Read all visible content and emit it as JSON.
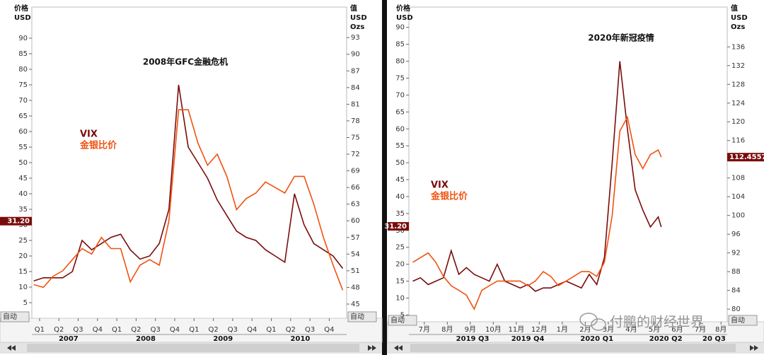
{
  "chart_data": [
    {
      "type": "line",
      "annotation": "2008年GFC金融危机",
      "y_label": [
        "价格",
        "USD"
      ],
      "y2_label": [
        "值",
        "USD",
        "Ozs"
      ],
      "auto_label": "自动",
      "x": [
        0.2,
        0.7,
        1.2,
        1.7,
        2.2,
        2.7,
        3.2,
        3.7,
        4.2,
        4.7,
        5.2,
        5.7,
        6.2,
        6.7,
        7.2,
        7.7,
        8.2,
        8.7,
        9.2,
        9.7,
        10.2,
        10.7,
        11.2,
        11.7,
        12.2,
        12.7,
        13.2,
        13.7,
        14.2,
        14.7,
        15.2,
        15.7,
        16.2
      ],
      "xlim": [
        0.1,
        16.4
      ],
      "xticks": [
        {
          "value": 0.5,
          "label": "Q1"
        },
        {
          "value": 1.5,
          "label": "Q2"
        },
        {
          "value": 2.5,
          "label": "Q3"
        },
        {
          "value": 3.5,
          "label": "Q4"
        },
        {
          "value": 4.5,
          "label": "Q1"
        },
        {
          "value": 5.5,
          "label": "Q2"
        },
        {
          "value": 6.5,
          "label": "Q3"
        },
        {
          "value": 7.5,
          "label": "Q4"
        },
        {
          "value": 8.5,
          "label": "Q1"
        },
        {
          "value": 9.5,
          "label": "Q2"
        },
        {
          "value": 10.5,
          "label": "Q3"
        },
        {
          "value": 11.5,
          "label": "Q4"
        },
        {
          "value": 12.5,
          "label": "Q1"
        },
        {
          "value": 13.5,
          "label": "Q2"
        },
        {
          "value": 14.5,
          "label": "Q3"
        },
        {
          "value": 15.5,
          "label": "Q4"
        }
      ],
      "x_groups": [
        {
          "value": 2,
          "label": "2007"
        },
        {
          "value": 6,
          "label": "2008"
        },
        {
          "value": 10,
          "label": "2009"
        },
        {
          "value": 14,
          "label": "2010"
        }
      ],
      "ylim": [
        0,
        100
      ],
      "yticks": [
        5,
        10,
        15,
        20,
        25,
        30,
        35,
        40,
        45,
        50,
        55,
        60,
        65,
        70,
        75,
        80,
        85,
        90
      ],
      "y2lim": [
        42.45,
        98.5
      ],
      "y2ticks": [
        45,
        48,
        51,
        54,
        57,
        60,
        63,
        66,
        69,
        72,
        75,
        78,
        81,
        84,
        87,
        90,
        93
      ],
      "y_marker": {
        "value": 31.2,
        "label": "31.20"
      },
      "series": [
        {
          "name": "VIX",
          "color": "#7a0c0c",
          "values": [
            12,
            13,
            13,
            13,
            15,
            25,
            22,
            24,
            26,
            27,
            22,
            19,
            20,
            24,
            35,
            75,
            55,
            50,
            45,
            38,
            33,
            28,
            26,
            25,
            22,
            20,
            18,
            40,
            30,
            24,
            22,
            20,
            16
          ]
        },
        {
          "name": "金银比价",
          "color": "#f0520f",
          "axis": "y2",
          "values": [
            48.5,
            48,
            50,
            51,
            53,
            55,
            54,
            57,
            55,
            55,
            49,
            52,
            53,
            52,
            60,
            80,
            80,
            74,
            70,
            72,
            68,
            62,
            64,
            65,
            67,
            66,
            65,
            68,
            68,
            63,
            57,
            52,
            47.5
          ]
        }
      ]
    },
    {
      "type": "line",
      "annotation": "2020年新冠疫情",
      "y_label": [
        "价格",
        "USD"
      ],
      "y2_label": [
        "值",
        "USD",
        "Ozs"
      ],
      "auto_label": "自动",
      "x": [
        0,
        0.33,
        0.67,
        1,
        1.33,
        1.67,
        2,
        2.33,
        2.67,
        3,
        3.33,
        3.67,
        4,
        4.33,
        4.67,
        5,
        5.33,
        5.67,
        6,
        6.33,
        6.67,
        7,
        7.33,
        7.67,
        8,
        8.33,
        8.67,
        9,
        9.33,
        9.67,
        10,
        10.33,
        10.67,
        10.8
      ],
      "xlim": [
        -0.17,
        13.67
      ],
      "xticks": [
        {
          "value": 0.5,
          "label": "7月"
        },
        {
          "value": 1.5,
          "label": "8月"
        },
        {
          "value": 2.5,
          "label": "9月"
        },
        {
          "value": 3.5,
          "label": "10月"
        },
        {
          "value": 4.5,
          "label": "11月"
        },
        {
          "value": 5.5,
          "label": "12月"
        },
        {
          "value": 6.5,
          "label": "1月"
        },
        {
          "value": 7.5,
          "label": "2月"
        },
        {
          "value": 8.5,
          "label": "3月"
        },
        {
          "value": 9.5,
          "label": "4月"
        },
        {
          "value": 10.5,
          "label": "5月"
        },
        {
          "value": 11.5,
          "label": "6月"
        },
        {
          "value": 12.5,
          "label": "7月"
        },
        {
          "value": 13.4,
          "label": "8月"
        }
      ],
      "x_groups": [
        {
          "value": 2.6,
          "label": "2019 Q3"
        },
        {
          "value": 5,
          "label": "2019 Q4"
        },
        {
          "value": 8,
          "label": "2020 Q1"
        },
        {
          "value": 11,
          "label": "2020 Q2"
        },
        {
          "value": 13.1,
          "label": "20 Q3"
        }
      ],
      "ylim": [
        3,
        96
      ],
      "yticks": [
        5,
        10,
        15,
        20,
        25,
        30,
        35,
        40,
        45,
        50,
        55,
        60,
        65,
        70,
        75,
        80,
        85,
        90
      ],
      "y2lim": [
        77.3,
        144.5
      ],
      "y2ticks": [
        80,
        84,
        88,
        92,
        96,
        100,
        104,
        108,
        112,
        116,
        120,
        124,
        128,
        132,
        136
      ],
      "y_marker": {
        "value": 31.2,
        "label": "31.20"
      },
      "y2_marker": 112.4557,
      "series": [
        {
          "name": "VIX",
          "color": "#7a0c0c",
          "values": [
            15,
            16,
            14,
            15,
            16,
            24,
            17,
            19,
            17,
            16,
            15,
            20,
            15,
            14,
            13,
            14,
            12,
            13,
            13,
            14,
            15,
            14,
            13,
            17,
            14,
            22,
            50,
            80,
            60,
            42,
            36,
            31,
            34,
            31
          ]
        },
        {
          "name": "金银比价",
          "color": "#f0520f",
          "axis": "y2",
          "values": [
            90,
            91,
            92,
            90,
            87,
            85,
            84,
            83,
            80,
            84,
            85,
            86,
            86,
            86,
            86,
            85,
            86,
            88,
            87,
            85,
            86,
            87,
            88,
            88,
            87,
            90,
            100,
            118,
            121,
            113,
            110,
            113,
            114,
            112.4557
          ]
        }
      ]
    }
  ],
  "watermark": "付鹏的财经世界"
}
